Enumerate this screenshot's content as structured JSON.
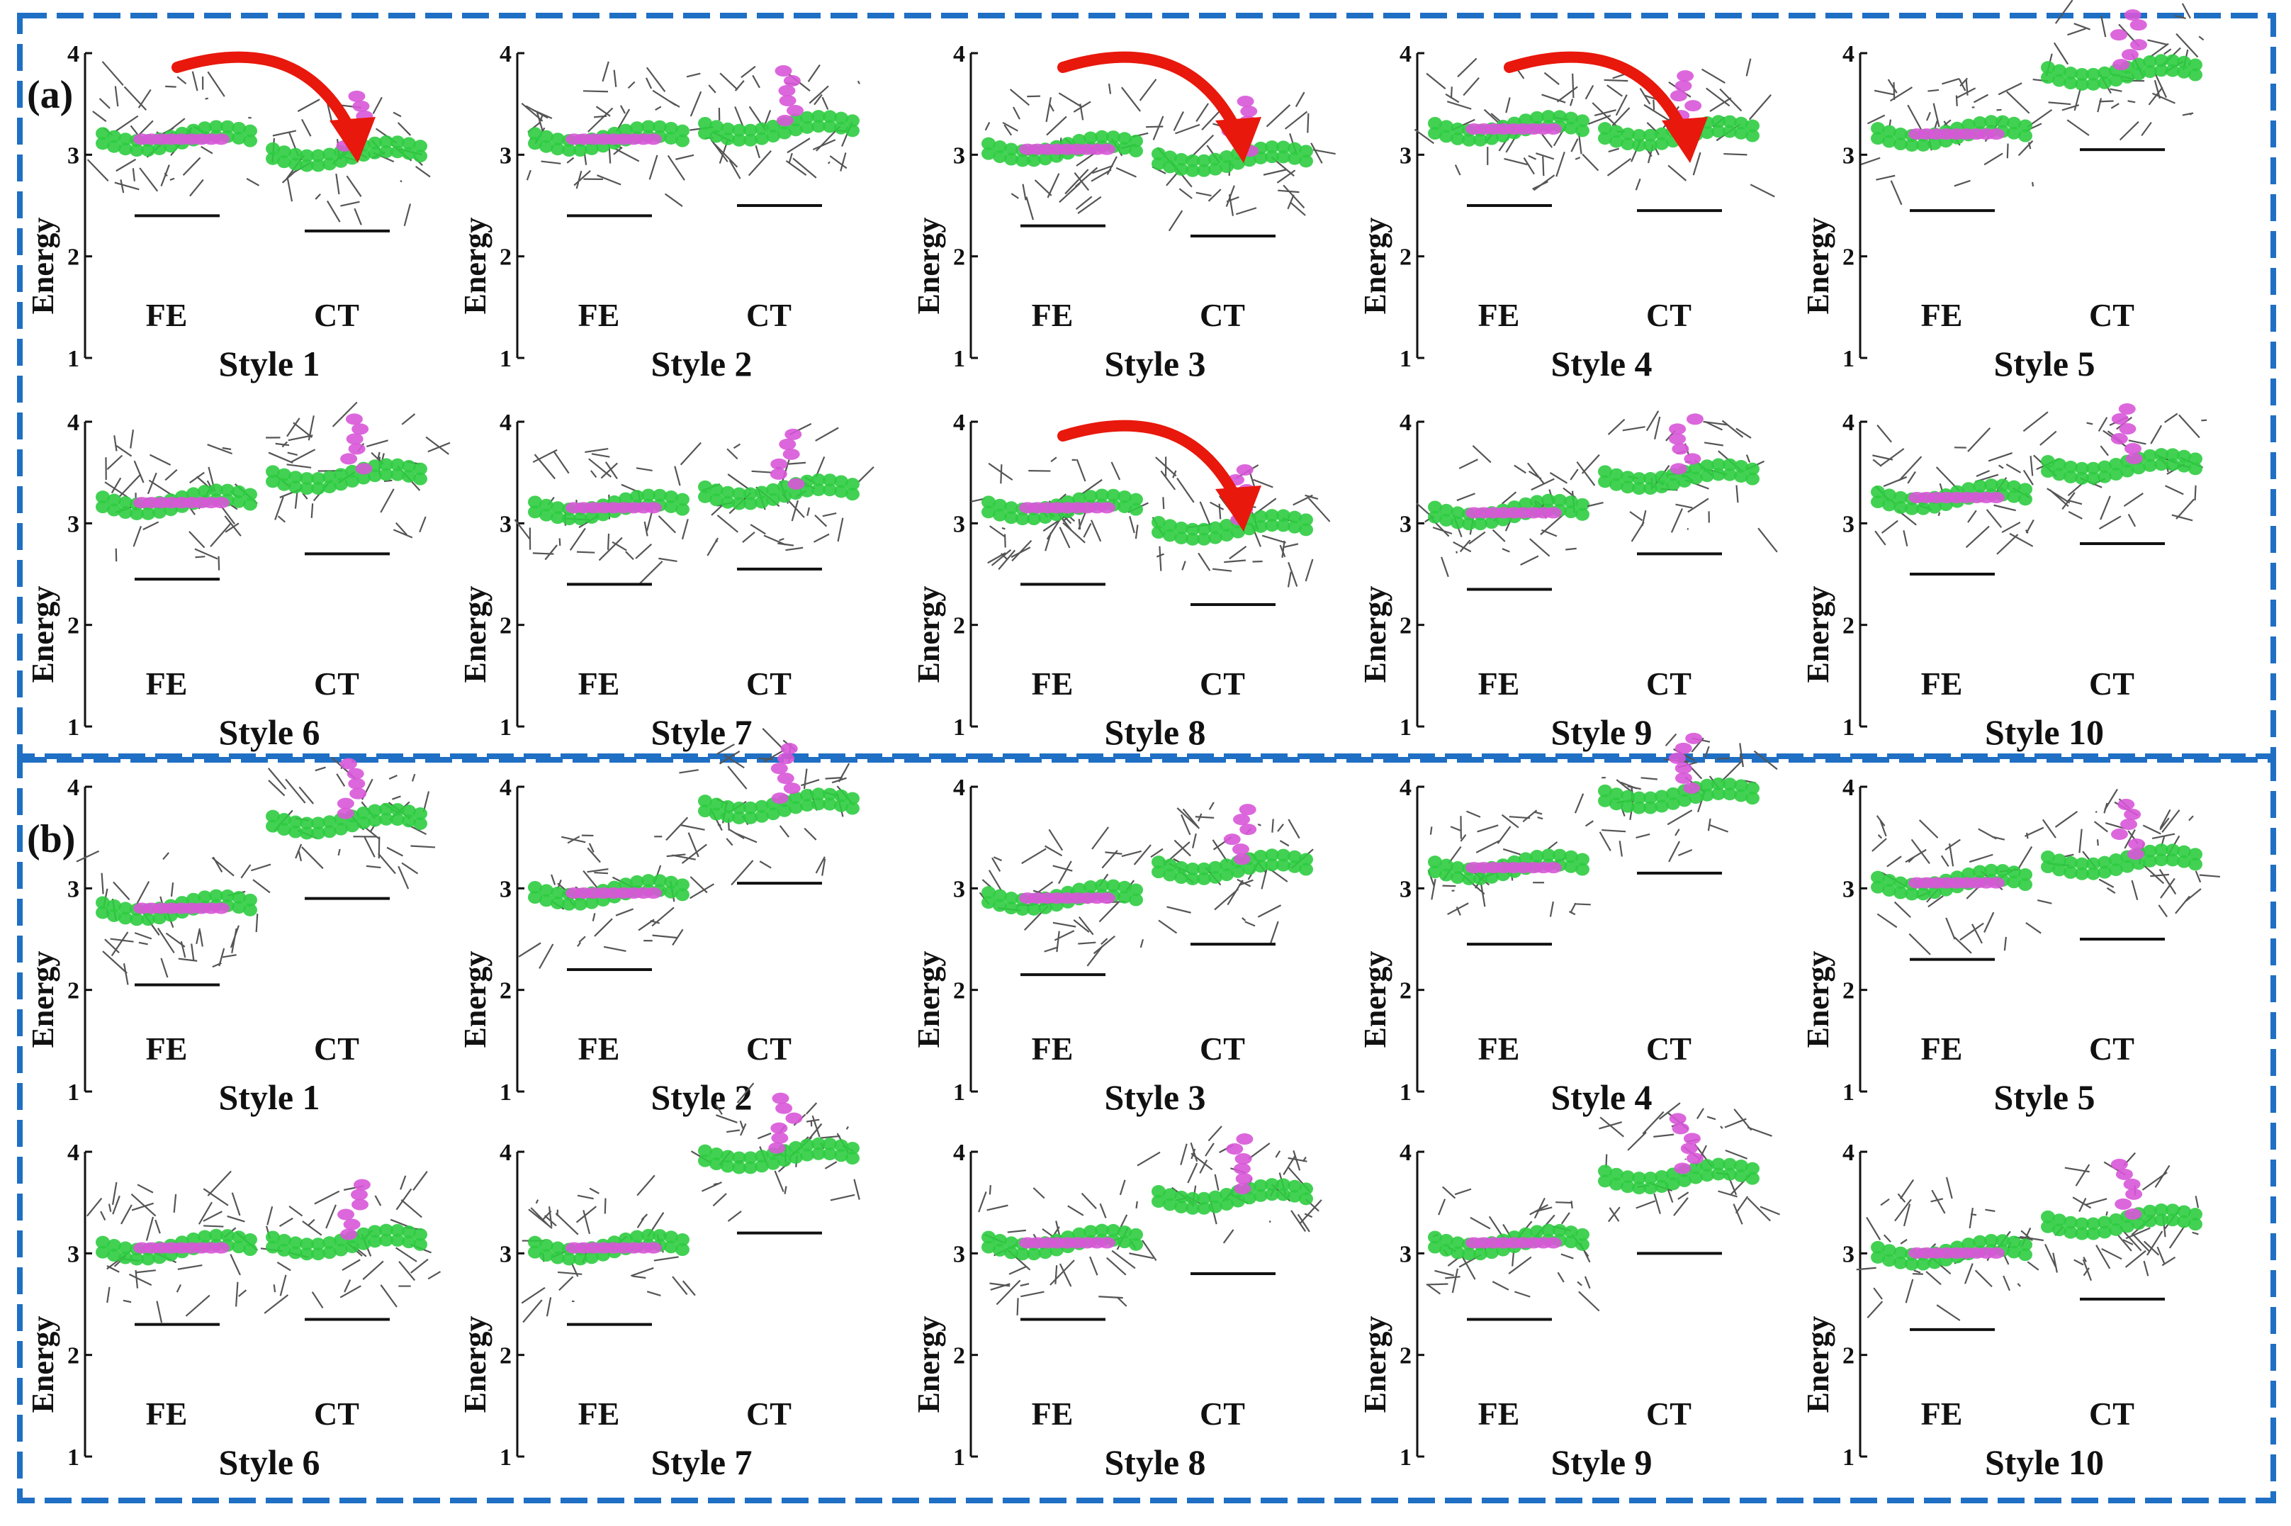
{
  "figure": {
    "frame_color": "#1f6fc4",
    "donor_color": "#2ecc40",
    "acceptor_color": "#d857d8",
    "arrow_color": "#e8180c",
    "molecule_line_color": "#555555",
    "y_axis_label": "Energy",
    "y_ticks": [
      "1",
      "2",
      "3",
      "4"
    ],
    "state_labels": {
      "fe": "FE",
      "ct": "CT"
    },
    "panels": [
      {
        "label": "(a)",
        "styles": [
          {
            "name": "Style 1",
            "fe_energy": 2.4,
            "ct_energy": 2.25,
            "arrow": true
          },
          {
            "name": "Style 2",
            "fe_energy": 2.4,
            "ct_energy": 2.5,
            "arrow": false
          },
          {
            "name": "Style 3",
            "fe_energy": 2.3,
            "ct_energy": 2.2,
            "arrow": true
          },
          {
            "name": "Style 4",
            "fe_energy": 2.5,
            "ct_energy": 2.45,
            "arrow": true
          },
          {
            "name": "Style 5",
            "fe_energy": 2.45,
            "ct_energy": 3.05,
            "arrow": false
          },
          {
            "name": "Style 6",
            "fe_energy": 2.45,
            "ct_energy": 2.7,
            "arrow": false
          },
          {
            "name": "Style 7",
            "fe_energy": 2.4,
            "ct_energy": 2.55,
            "arrow": false
          },
          {
            "name": "Style 8",
            "fe_energy": 2.4,
            "ct_energy": 2.2,
            "arrow": true
          },
          {
            "name": "Style 9",
            "fe_energy": 2.35,
            "ct_energy": 2.7,
            "arrow": false
          },
          {
            "name": "Style 10",
            "fe_energy": 2.5,
            "ct_energy": 2.8,
            "arrow": false
          }
        ]
      },
      {
        "label": "(b)",
        "styles": [
          {
            "name": "Style 1",
            "fe_energy": 2.05,
            "ct_energy": 2.9,
            "arrow": false
          },
          {
            "name": "Style 2",
            "fe_energy": 2.2,
            "ct_energy": 3.05,
            "arrow": false
          },
          {
            "name": "Style 3",
            "fe_energy": 2.15,
            "ct_energy": 2.45,
            "arrow": false
          },
          {
            "name": "Style 4",
            "fe_energy": 2.45,
            "ct_energy": 3.15,
            "arrow": false
          },
          {
            "name": "Style 5",
            "fe_energy": 2.3,
            "ct_energy": 2.5,
            "arrow": false
          },
          {
            "name": "Style 6",
            "fe_energy": 2.3,
            "ct_energy": 2.35,
            "arrow": false
          },
          {
            "name": "Style 7",
            "fe_energy": 2.3,
            "ct_energy": 3.2,
            "arrow": false
          },
          {
            "name": "Style 8",
            "fe_energy": 2.35,
            "ct_energy": 2.8,
            "arrow": false
          },
          {
            "name": "Style 9",
            "fe_energy": 2.35,
            "ct_energy": 3.0,
            "arrow": false
          },
          {
            "name": "Style 10",
            "fe_energy": 2.25,
            "ct_energy": 2.55,
            "arrow": false
          }
        ]
      }
    ]
  }
}
